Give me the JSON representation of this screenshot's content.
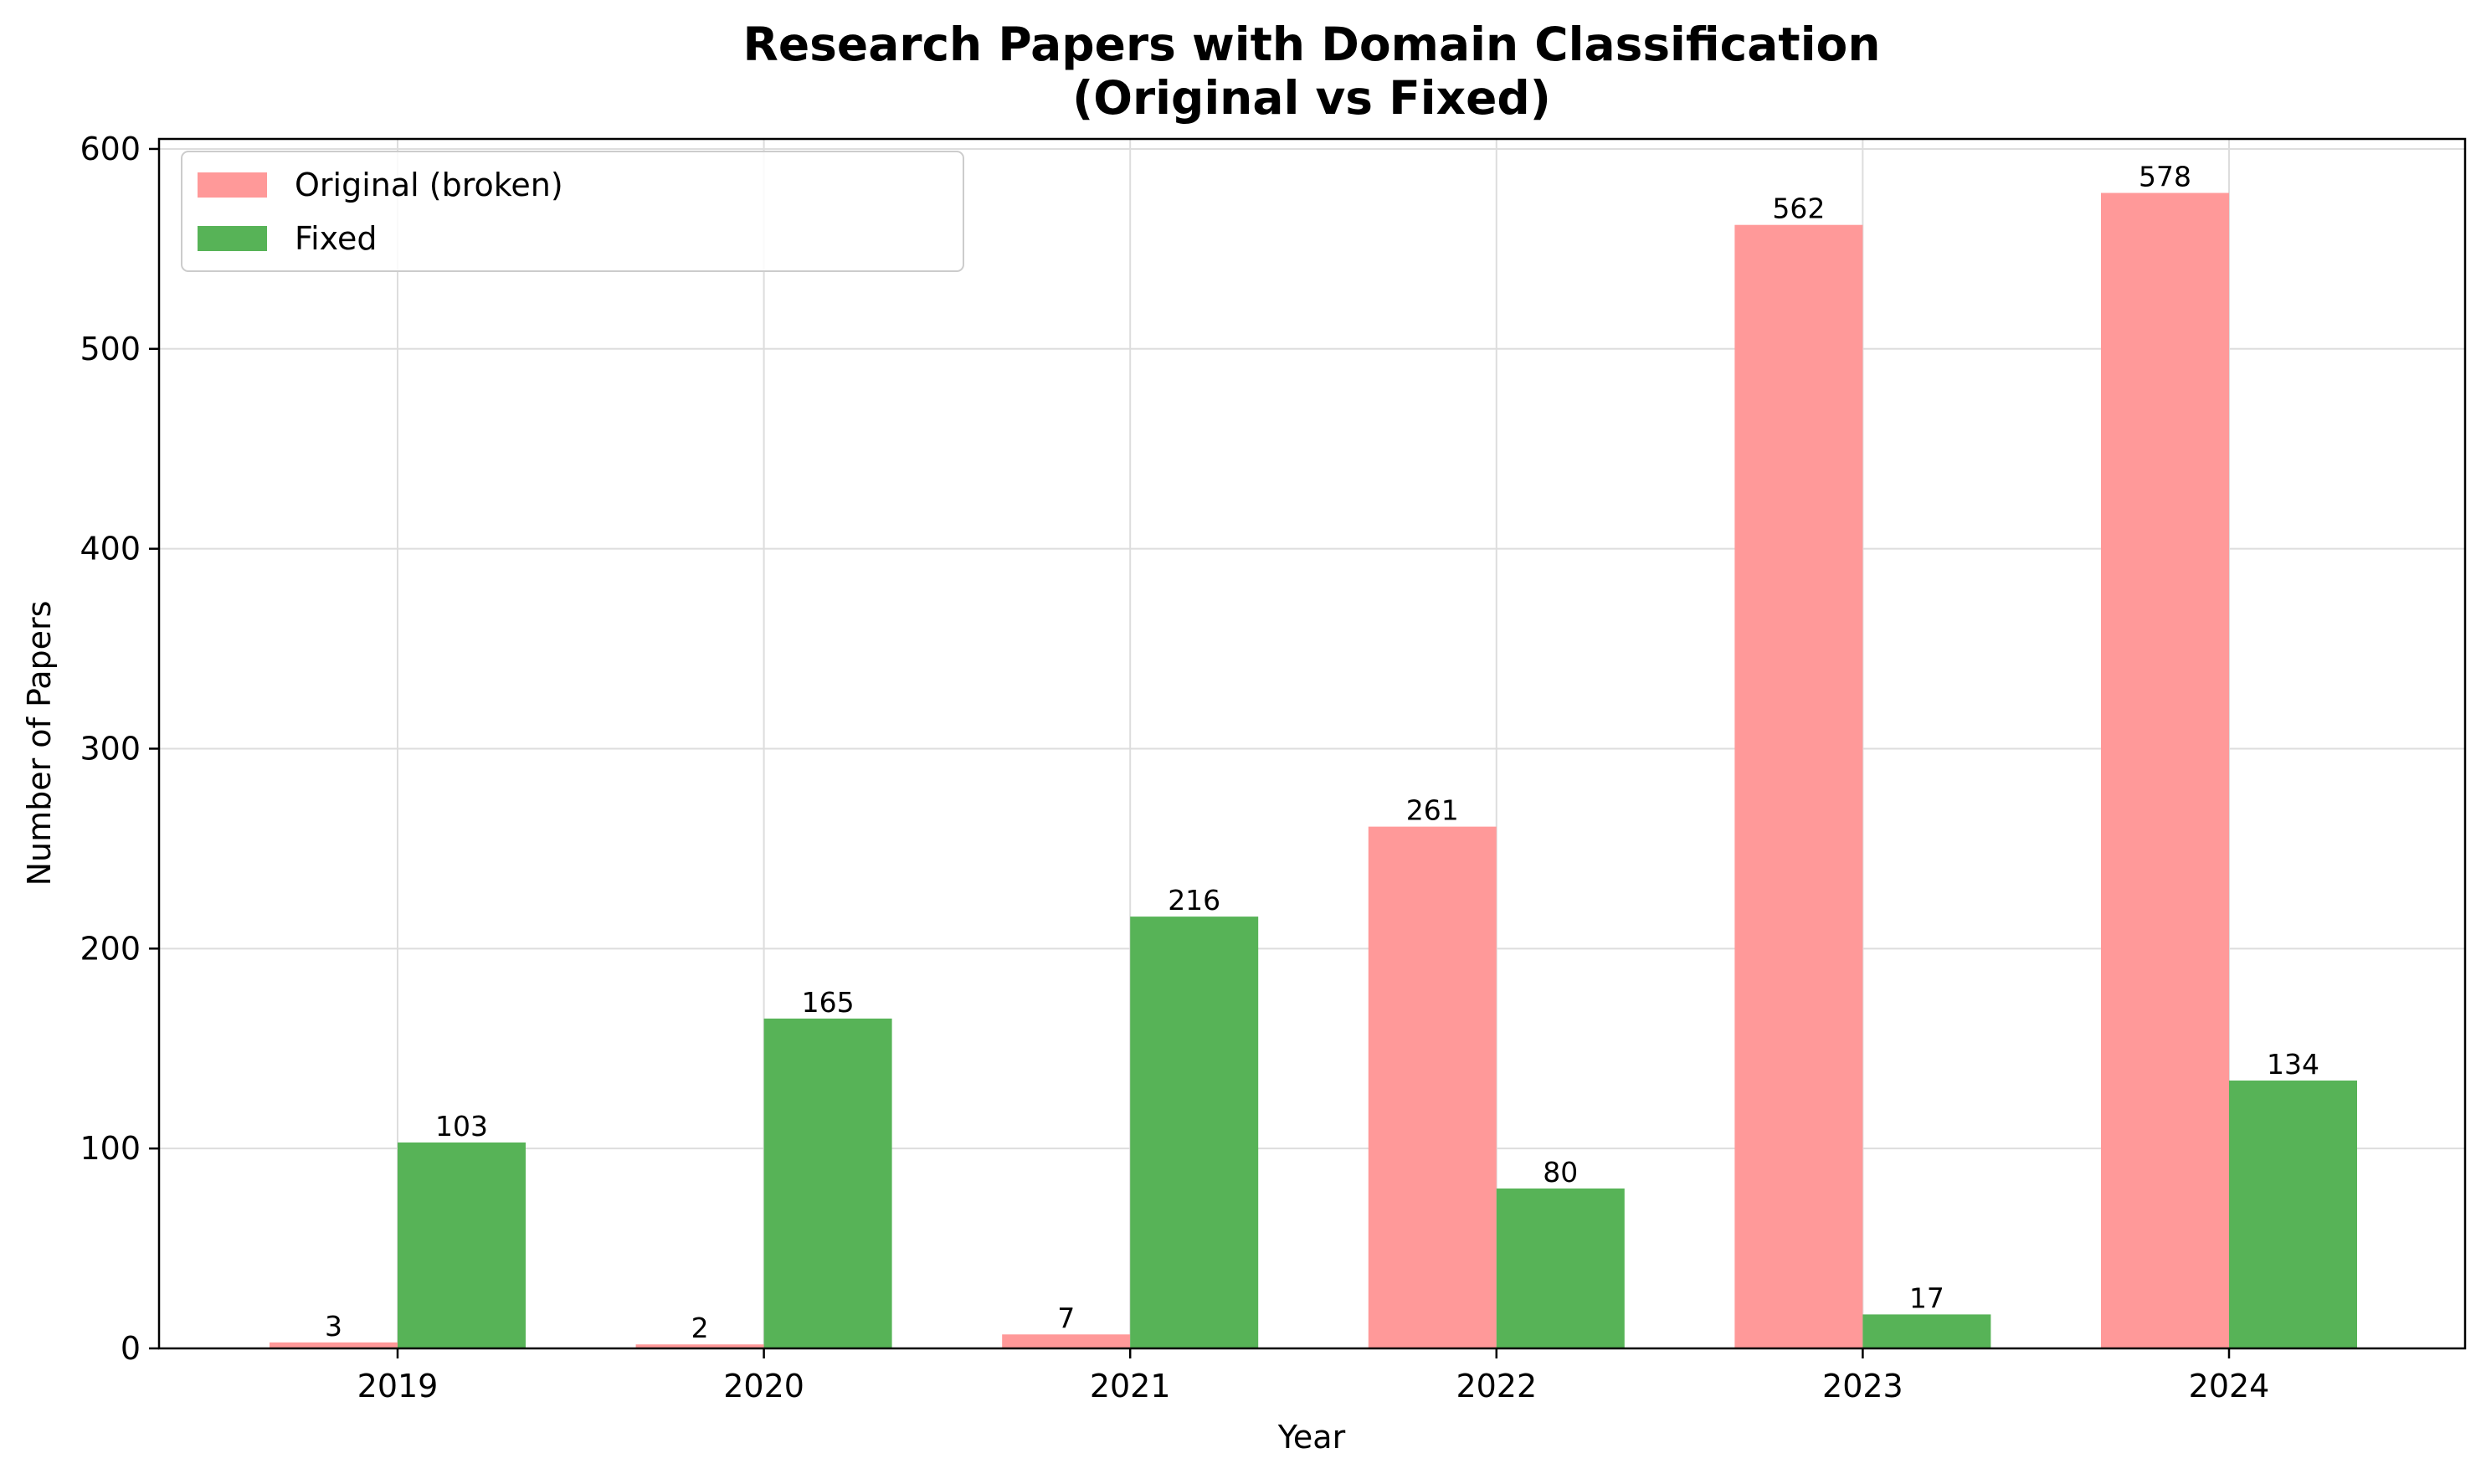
{
  "chart_data": {
    "type": "bar",
    "title": "Research Papers with Domain Classification",
    "subtitle": "(Original vs Fixed)",
    "xlabel": "Year",
    "ylabel": "Number of Papers",
    "categories": [
      "2019",
      "2020",
      "2021",
      "2022",
      "2023",
      "2024"
    ],
    "series": [
      {
        "name": "Original (broken)",
        "color": "#ff9999",
        "values": [
          3,
          2,
          7,
          261,
          562,
          578
        ]
      },
      {
        "name": "Fixed",
        "color": "#57b357",
        "values": [
          103,
          165,
          216,
          80,
          17,
          134
        ]
      }
    ],
    "ylim": [
      0,
      605
    ],
    "yticks": [
      0,
      100,
      200,
      300,
      400,
      500,
      600
    ],
    "grid": true,
    "legend_position": "top-left"
  }
}
